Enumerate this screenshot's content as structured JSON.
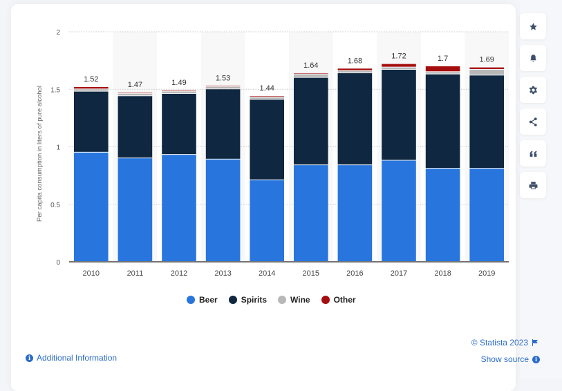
{
  "sidebar": {
    "buttons": [
      {
        "name": "favorite-button",
        "icon": "star-icon"
      },
      {
        "name": "notification-button",
        "icon": "bell-icon"
      },
      {
        "name": "settings-button",
        "icon": "gear-icon"
      },
      {
        "name": "share-button",
        "icon": "share-icon"
      },
      {
        "name": "cite-button",
        "icon": "quote-icon"
      },
      {
        "name": "print-button",
        "icon": "print-icon"
      }
    ]
  },
  "footer": {
    "additional_info": "Additional Information",
    "copyright": "© Statista 2023",
    "show_source": "Show source"
  },
  "colors": {
    "beer": "#2876dd",
    "spirits": "#0f2740",
    "wine": "#b8b8b8",
    "other": "#a50e0e",
    "link": "#2b6cc8"
  },
  "chart_data": {
    "type": "bar",
    "stacked": true,
    "title": "",
    "xlabel": "",
    "ylabel": "Per capita consumption in liters of pure alcohol",
    "ylim": [
      0,
      2
    ],
    "yticks": [
      0,
      0.5,
      1,
      1.5,
      2
    ],
    "ytick_labels": [
      "0",
      "0.5",
      "1",
      "1.5",
      "2"
    ],
    "grid": true,
    "legend_position": "bottom",
    "categories": [
      "2010",
      "2011",
      "2012",
      "2013",
      "2014",
      "2015",
      "2016",
      "2017",
      "2018",
      "2019"
    ],
    "series": [
      {
        "name": "Beer",
        "color": "#2876dd",
        "values": [
          0.95,
          0.9,
          0.93,
          0.89,
          0.71,
          0.84,
          0.84,
          0.88,
          0.81,
          0.81
        ]
      },
      {
        "name": "Spirits",
        "color": "#0f2740",
        "values": [
          0.53,
          0.54,
          0.53,
          0.61,
          0.7,
          0.76,
          0.8,
          0.79,
          0.82,
          0.81
        ]
      },
      {
        "name": "Wine",
        "color": "#b8b8b8",
        "values": [
          0.02,
          0.02,
          0.02,
          0.02,
          0.02,
          0.03,
          0.02,
          0.02,
          0.02,
          0.05
        ]
      },
      {
        "name": "Other",
        "color": "#a50e0e",
        "values": [
          0.02,
          0.01,
          0.01,
          0.01,
          0.01,
          0.01,
          0.02,
          0.03,
          0.05,
          0.02
        ]
      }
    ],
    "totals": [
      1.52,
      1.47,
      1.49,
      1.53,
      1.44,
      1.64,
      1.68,
      1.72,
      1.7,
      1.69
    ],
    "total_labels": [
      "1.52",
      "1.47",
      "1.49",
      "1.53",
      "1.44",
      "1.64",
      "1.68",
      "1.72",
      "1.7",
      "1.69"
    ]
  }
}
